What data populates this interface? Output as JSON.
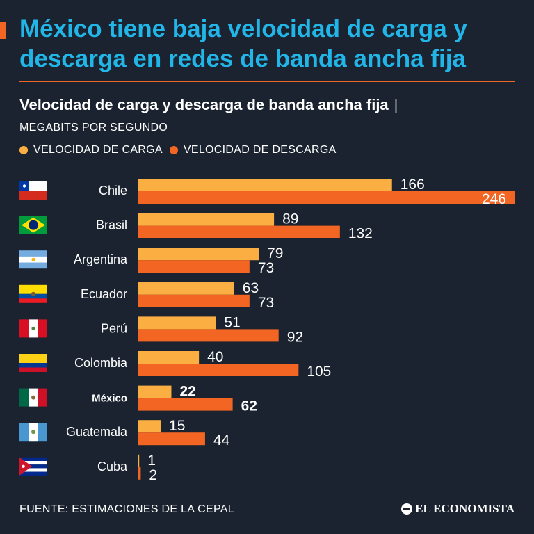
{
  "header": {
    "headline": "México tiene baja velocidad de carga y descarga en redes de banda ancha fija",
    "subtitle": "Velocidad de carga y descarga de banda ancha fija",
    "separator": "|",
    "units": "MEGABITS POR SEGUNDO"
  },
  "legend": {
    "upload": "VELOCIDAD DE CARGA",
    "download": "VELOCIDAD DE DESCARGA"
  },
  "colors": {
    "background": "#1b2330",
    "headline": "#22b6e8",
    "accent": "#f26522",
    "upload": "#fbae42",
    "download": "#f26522"
  },
  "chart_data": {
    "type": "bar",
    "orientation": "horizontal",
    "categories": [
      "Chile",
      "Brasil",
      "Argentina",
      "Ecuador",
      "Perú",
      "Colombia",
      "México",
      "Guatemala",
      "Cuba"
    ],
    "highlight": "México",
    "series": [
      {
        "name": "VELOCIDAD DE CARGA",
        "values": [
          166,
          89,
          79,
          63,
          51,
          40,
          22,
          15,
          1
        ]
      },
      {
        "name": "VELOCIDAD DE DESCARGA",
        "values": [
          246,
          132,
          73,
          73,
          92,
          105,
          62,
          44,
          2
        ]
      }
    ],
    "xlim": [
      0,
      246
    ],
    "grid": false,
    "legend_position": "top-left"
  },
  "flags": [
    {
      "country": "Chile",
      "icon": "flag-chile-icon"
    },
    {
      "country": "Brasil",
      "icon": "flag-brasil-icon"
    },
    {
      "country": "Argentina",
      "icon": "flag-argentina-icon"
    },
    {
      "country": "Ecuador",
      "icon": "flag-ecuador-icon"
    },
    {
      "country": "Perú",
      "icon": "flag-peru-icon"
    },
    {
      "country": "Colombia",
      "icon": "flag-colombia-icon"
    },
    {
      "country": "México",
      "icon": "flag-mexico-icon"
    },
    {
      "country": "Guatemala",
      "icon": "flag-guatemala-icon"
    },
    {
      "country": "Cuba",
      "icon": "flag-cuba-icon"
    }
  ],
  "footer": {
    "source": "FUENTE: ESTIMACIONES DE LA CEPAL",
    "brand": "EL ECONOMISTA"
  }
}
